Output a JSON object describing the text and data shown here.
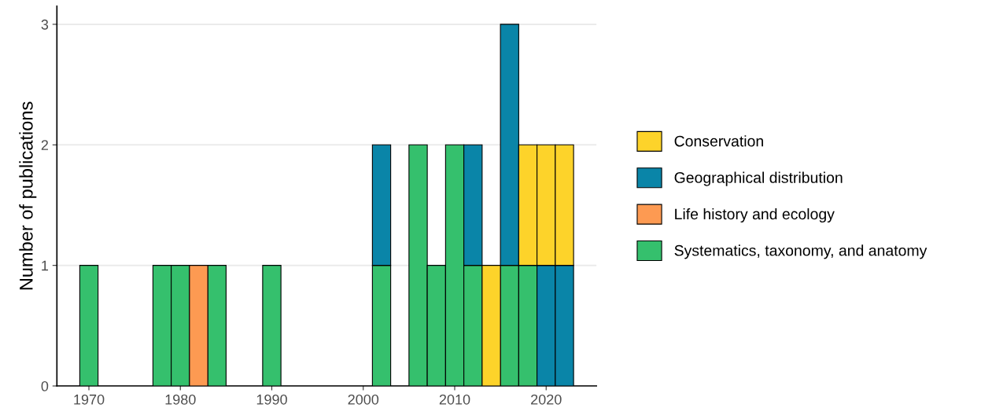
{
  "chart_data": {
    "type": "bar",
    "ylabel": "Number of publications",
    "stacked": true,
    "x": [
      1970,
      1972,
      1974,
      1976,
      1978,
      1980,
      1982,
      1984,
      1986,
      1988,
      1990,
      1992,
      1994,
      1996,
      1998,
      2000,
      2002,
      2004,
      2006,
      2008,
      2010,
      2012,
      2014,
      2016,
      2018,
      2020,
      2022
    ],
    "series": [
      {
        "name": "Systematics, taxonomy, and anatomy",
        "color": "#35c06d",
        "values": [
          1,
          null,
          null,
          null,
          1,
          1,
          null,
          1,
          null,
          null,
          1,
          null,
          null,
          null,
          null,
          null,
          1,
          null,
          2,
          1,
          2,
          1,
          null,
          1,
          1,
          null,
          null
        ]
      },
      {
        "name": "Life history and ecology",
        "color": "#fd9a52",
        "values": [
          null,
          null,
          null,
          null,
          null,
          null,
          1,
          null,
          null,
          null,
          null,
          null,
          null,
          null,
          null,
          null,
          null,
          null,
          null,
          null,
          null,
          null,
          null,
          null,
          null,
          null,
          null
        ]
      },
      {
        "name": "Geographical distribution",
        "color": "#0a85a8",
        "values": [
          null,
          null,
          null,
          null,
          null,
          null,
          null,
          null,
          null,
          null,
          null,
          null,
          null,
          null,
          null,
          null,
          1,
          null,
          null,
          null,
          null,
          1,
          null,
          2,
          null,
          1,
          1
        ]
      },
      {
        "name": "Conservation",
        "color": "#fdd32a",
        "values": [
          null,
          null,
          null,
          null,
          null,
          null,
          null,
          null,
          null,
          null,
          null,
          null,
          null,
          null,
          null,
          null,
          null,
          null,
          null,
          null,
          null,
          null,
          1,
          null,
          1,
          1,
          1
        ]
      }
    ],
    "xlim": [
      1966.5,
      2025.5
    ],
    "xticks": [
      1970,
      1980,
      1990,
      2000,
      2010,
      2020
    ],
    "ylim": [
      0,
      3.15
    ],
    "yticks": [
      0,
      1,
      2,
      3
    ],
    "grid": "y",
    "legend": "right"
  }
}
